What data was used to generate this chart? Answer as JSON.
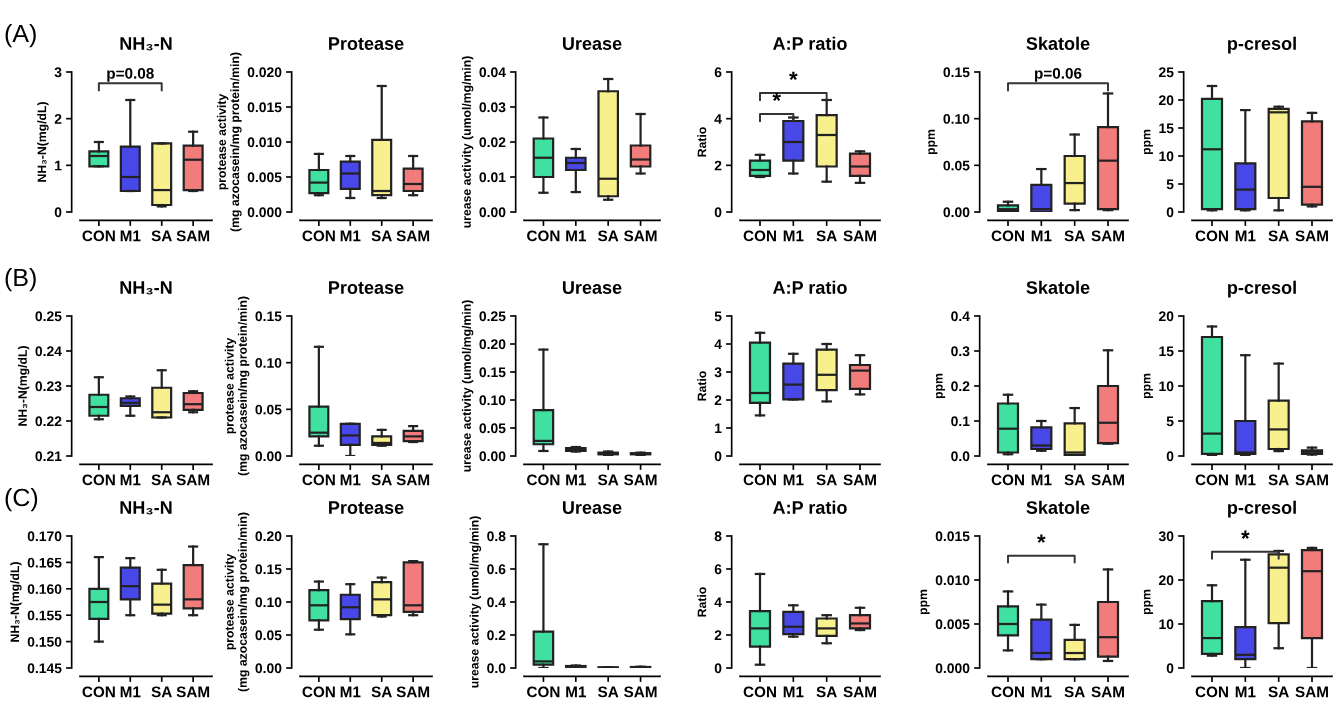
{
  "chart_data": [
    {
      "type": "box",
      "title": "NH₃-N",
      "ylabel": "NH₃-N(mg/dL)",
      "categories": [
        "CON",
        "M1",
        "SA",
        "SAM"
      ],
      "colors": [
        "#3fe0a0",
        "#4848e8",
        "#f8f08c",
        "#f27c7c"
      ],
      "ylim": [
        0,
        3
      ],
      "yticks": [
        0,
        1,
        2,
        3
      ],
      "annotations": [
        "(A)",
        "p=0.08"
      ],
      "boxes": [
        {
          "low": 0.98,
          "q1": 0.98,
          "median": 1.2,
          "q3": 1.3,
          "high": 1.5
        },
        {
          "low": 0.45,
          "q1": 0.45,
          "median": 0.75,
          "q3": 1.4,
          "high": 2.4
        },
        {
          "low": 0.12,
          "q1": 0.15,
          "median": 0.47,
          "q3": 1.47,
          "high": 1.47
        },
        {
          "low": 0.45,
          "q1": 0.47,
          "median": 1.12,
          "q3": 1.42,
          "high": 1.72
        }
      ]
    },
    {
      "type": "box",
      "title": "Protease",
      "ylabel": "protease activity\n(mg azocasein/mg protein/min)",
      "categories": [
        "CON",
        "M1",
        "SA",
        "SAM"
      ],
      "colors": [
        "#3fe0a0",
        "#4848e8",
        "#f8f08c",
        "#f27c7c"
      ],
      "ylim": [
        0,
        0.02
      ],
      "yticks": [
        {
          "value": 0,
          "label": "0.000"
        },
        {
          "value": 0.005,
          "label": "0.005"
        },
        {
          "value": 0.01,
          "label": "0.010"
        },
        {
          "value": 0.015,
          "label": "0.015"
        },
        {
          "value": 0.02,
          "label": "0.020"
        }
      ],
      "boxes": [
        {
          "low": 0.0024,
          "q1": 0.0027,
          "median": 0.0042,
          "q3": 0.006,
          "high": 0.0083
        },
        {
          "low": 0.002,
          "q1": 0.0033,
          "median": 0.0055,
          "q3": 0.0072,
          "high": 0.008
        },
        {
          "low": 0.002,
          "q1": 0.0024,
          "median": 0.003,
          "q3": 0.0103,
          "high": 0.018
        },
        {
          "low": 0.0024,
          "q1": 0.003,
          "median": 0.004,
          "q3": 0.0062,
          "high": 0.008
        }
      ]
    },
    {
      "type": "box",
      "title": "Urease",
      "ylabel": "urease activity (umol/mg/min)",
      "categories": [
        "CON",
        "M1",
        "SA",
        "SAM"
      ],
      "colors": [
        "#3fe0a0",
        "#4848e8",
        "#f8f08c",
        "#f27c7c"
      ],
      "ylim": [
        0,
        0.04
      ],
      "yticks": [
        {
          "value": 0,
          "label": "0.00"
        },
        {
          "value": 0.01,
          "label": "0.01"
        },
        {
          "value": 0.02,
          "label": "0.02"
        },
        {
          "value": 0.03,
          "label": "0.03"
        },
        {
          "value": 0.04,
          "label": "0.04"
        }
      ],
      "boxes": [
        {
          "low": 0.0055,
          "q1": 0.01,
          "median": 0.0155,
          "q3": 0.021,
          "high": 0.027
        },
        {
          "low": 0.0057,
          "q1": 0.012,
          "median": 0.014,
          "q3": 0.0155,
          "high": 0.018
        },
        {
          "low": 0.0035,
          "q1": 0.0045,
          "median": 0.0095,
          "q3": 0.0345,
          "high": 0.038
        },
        {
          "low": 0.011,
          "q1": 0.013,
          "median": 0.015,
          "q3": 0.019,
          "high": 0.028
        }
      ]
    },
    {
      "type": "box",
      "title": "A:P ratio",
      "ylabel": "Ratio",
      "categories": [
        "CON",
        "M1",
        "SA",
        "SAM"
      ],
      "colors": [
        "#3fe0a0",
        "#4848e8",
        "#f8f08c",
        "#f27c7c"
      ],
      "ylim": [
        0,
        6
      ],
      "yticks": [
        0,
        2,
        4,
        6
      ],
      "annotations": [
        "*",
        "*"
      ],
      "boxes": [
        {
          "low": 1.5,
          "q1": 1.55,
          "median": 1.8,
          "q3": 2.2,
          "high": 2.45
        },
        {
          "low": 1.65,
          "q1": 2.2,
          "median": 3.0,
          "q3": 3.9,
          "high": 4.05
        },
        {
          "low": 1.3,
          "q1": 1.95,
          "median": 3.3,
          "q3": 4.15,
          "high": 4.8
        },
        {
          "low": 1.25,
          "q1": 1.55,
          "median": 1.95,
          "q3": 2.5,
          "high": 2.6
        }
      ]
    },
    {
      "type": "box",
      "title": "Skatole",
      "ylabel": "ppm",
      "categories": [
        "CON",
        "M1",
        "SA",
        "SAM"
      ],
      "colors": [
        "#3fe0a0",
        "#4848e8",
        "#f8f08c",
        "#f27c7c"
      ],
      "ylim": [
        0,
        0.15
      ],
      "yticks": [
        {
          "value": 0,
          "label": "0.00"
        },
        {
          "value": 0.05,
          "label": "0.05"
        },
        {
          "value": 0.1,
          "label": "0.10"
        },
        {
          "value": 0.15,
          "label": "0.15"
        }
      ],
      "annotations": [
        "p=0.06"
      ],
      "boxes": [
        {
          "low": 0,
          "q1": 0.001,
          "median": 0.003,
          "q3": 0.007,
          "high": 0.011
        },
        {
          "low": 0,
          "q1": 0,
          "median": 0.003,
          "q3": 0.029,
          "high": 0.046
        },
        {
          "low": 0.002,
          "q1": 0.009,
          "median": 0.031,
          "q3": 0.06,
          "high": 0.083
        },
        {
          "low": 0.002,
          "q1": 0.003,
          "median": 0.055,
          "q3": 0.091,
          "high": 0.127
        }
      ]
    },
    {
      "type": "box",
      "title": "p-cresol",
      "ylabel": "ppm",
      "categories": [
        "CON",
        "M1",
        "SA",
        "SAM"
      ],
      "colors": [
        "#3fe0a0",
        "#4848e8",
        "#f8f08c",
        "#f27c7c"
      ],
      "ylim": [
        0,
        25
      ],
      "yticks": [
        0,
        5,
        10,
        15,
        20,
        25
      ],
      "boxes": [
        {
          "low": 0.3,
          "q1": 0.5,
          "median": 11.2,
          "q3": 20.2,
          "high": 22.5
        },
        {
          "low": 0.3,
          "q1": 0.5,
          "median": 4,
          "q3": 8.7,
          "high": 18.2
        },
        {
          "low": 0.3,
          "q1": 2.5,
          "median": 17.8,
          "q3": 18.4,
          "high": 18.8
        },
        {
          "low": 1,
          "q1": 1.3,
          "median": 4.5,
          "q3": 16.2,
          "high": 17.7
        }
      ]
    },
    {
      "type": "box",
      "title": "NH₃-N",
      "ylabel": "NH₃-N(mg/dL)",
      "categories": [
        "CON",
        "M1",
        "SA",
        "SAM"
      ],
      "colors": [
        "#3fe0a0",
        "#4848e8",
        "#f8f08c",
        "#f27c7c"
      ],
      "ylim": [
        0.21,
        0.25
      ],
      "yticks": [
        {
          "value": 0.21,
          "label": "0.21"
        },
        {
          "value": 0.22,
          "label": "0.22"
        },
        {
          "value": 0.23,
          "label": "0.23"
        },
        {
          "value": 0.24,
          "label": "0.24"
        },
        {
          "value": 0.25,
          "label": "0.25"
        }
      ],
      "annotations": [
        "(B)"
      ],
      "boxes": [
        {
          "low": 0.2205,
          "q1": 0.2215,
          "median": 0.224,
          "q3": 0.2275,
          "high": 0.2325
        },
        {
          "low": 0.2215,
          "q1": 0.2243,
          "median": 0.2252,
          "q3": 0.2265,
          "high": 0.227
        },
        {
          "low": 0.221,
          "q1": 0.221,
          "median": 0.2225,
          "q3": 0.2295,
          "high": 0.2345
        },
        {
          "low": 0.2225,
          "q1": 0.2232,
          "median": 0.2248,
          "q3": 0.228,
          "high": 0.2285
        }
      ]
    },
    {
      "type": "box",
      "title": "Protease",
      "ylabel": "protease activity\n(mg azocasein/mg protein/min)",
      "categories": [
        "CON",
        "M1",
        "SA",
        "SAM"
      ],
      "colors": [
        "#3fe0a0",
        "#4848e8",
        "#f8f08c",
        "#f27c7c"
      ],
      "ylim": [
        0,
        0.15
      ],
      "yticks": [
        {
          "value": 0,
          "label": "0.00"
        },
        {
          "value": 0.05,
          "label": "0.05"
        },
        {
          "value": 0.1,
          "label": "0.10"
        },
        {
          "value": 0.15,
          "label": "0.15"
        }
      ],
      "boxes": [
        {
          "low": 0.011,
          "q1": 0.021,
          "median": 0.025,
          "q3": 0.053,
          "high": 0.117
        },
        {
          "low": 0,
          "q1": 0.012,
          "median": 0.022,
          "q3": 0.0345,
          "high": 0.0345
        },
        {
          "low": 0.011,
          "q1": 0.012,
          "median": 0.014,
          "q3": 0.021,
          "high": 0.028
        },
        {
          "low": 0.015,
          "q1": 0.016,
          "median": 0.021,
          "q3": 0.027,
          "high": 0.032
        }
      ]
    },
    {
      "type": "box",
      "title": "Urease",
      "ylabel": "urease activity (umol/mg/min)",
      "categories": [
        "CON",
        "M1",
        "SA",
        "SAM"
      ],
      "colors": [
        "#3fe0a0",
        "#4848e8",
        "#f8f08c",
        "#f27c7c"
      ],
      "ylim": [
        0,
        0.25
      ],
      "yticks": [
        {
          "value": 0,
          "label": "0.00"
        },
        {
          "value": 0.05,
          "label": "0.05"
        },
        {
          "value": 0.1,
          "label": "0.10"
        },
        {
          "value": 0.15,
          "label": "0.15"
        },
        {
          "value": 0.2,
          "label": "0.20"
        },
        {
          "value": 0.25,
          "label": "0.25"
        }
      ],
      "boxes": [
        {
          "low": 0.009,
          "q1": 0.021,
          "median": 0.027,
          "q3": 0.082,
          "high": 0.19
        },
        {
          "low": 0.008,
          "q1": 0.009,
          "median": 0.011,
          "q3": 0.014,
          "high": 0.016
        },
        {
          "low": 0.002,
          "q1": 0.003,
          "median": 0.004,
          "q3": 0.006,
          "high": 0.008
        },
        {
          "low": 0.002,
          "q1": 0.003,
          "median": 0.004,
          "q3": 0.005,
          "high": 0.006
        }
      ]
    },
    {
      "type": "box",
      "title": "A:P ratio",
      "ylabel": "Ratio",
      "categories": [
        "CON",
        "M1",
        "SA",
        "SAM"
      ],
      "colors": [
        "#3fe0a0",
        "#4848e8",
        "#f8f08c",
        "#f27c7c"
      ],
      "ylim": [
        0,
        5
      ],
      "yticks": [
        0,
        1,
        2,
        3,
        4,
        5
      ],
      "boxes": [
        {
          "low": 1.45,
          "q1": 1.9,
          "median": 2.25,
          "q3": 4.05,
          "high": 4.4
        },
        {
          "low": 2.02,
          "q1": 2.02,
          "median": 2.55,
          "q3": 3.3,
          "high": 3.65
        },
        {
          "low": 1.95,
          "q1": 2.35,
          "median": 2.9,
          "q3": 3.8,
          "high": 4.0
        },
        {
          "low": 2.2,
          "q1": 2.4,
          "median": 3.05,
          "q3": 3.25,
          "high": 3.6
        }
      ]
    },
    {
      "type": "box",
      "title": "Skatole",
      "ylabel": "ppm",
      "categories": [
        "CON",
        "M1",
        "SA",
        "SAM"
      ],
      "colors": [
        "#3fe0a0",
        "#4848e8",
        "#f8f08c",
        "#f27c7c"
      ],
      "ylim": [
        0,
        0.4
      ],
      "yticks": [
        {
          "value": 0,
          "label": "0.0"
        },
        {
          "value": 0.1,
          "label": "0.1"
        },
        {
          "value": 0.2,
          "label": "0.2"
        },
        {
          "value": 0.3,
          "label": "0.3"
        },
        {
          "value": 0.4,
          "label": "0.4"
        }
      ],
      "boxes": [
        {
          "low": 0.005,
          "q1": 0.01,
          "median": 0.078,
          "q3": 0.15,
          "high": 0.175
        },
        {
          "low": 0.015,
          "q1": 0.02,
          "median": 0.03,
          "q3": 0.082,
          "high": 0.1
        },
        {
          "low": 0,
          "q1": 0.003,
          "median": 0.01,
          "q3": 0.093,
          "high": 0.137
        },
        {
          "low": 0.035,
          "q1": 0.037,
          "median": 0.095,
          "q3": 0.2,
          "high": 0.302
        }
      ]
    },
    {
      "type": "box",
      "title": "p-cresol",
      "ylabel": "ppm",
      "categories": [
        "CON",
        "M1",
        "SA",
        "SAM"
      ],
      "colors": [
        "#3fe0a0",
        "#4848e8",
        "#f8f08c",
        "#f27c7c"
      ],
      "ylim": [
        0,
        20
      ],
      "yticks": [
        0,
        5,
        10,
        15,
        20
      ],
      "boxes": [
        {
          "low": 0,
          "q1": 0.3,
          "median": 3.2,
          "q3": 17,
          "high": 18.5
        },
        {
          "low": 0,
          "q1": 0.3,
          "median": 0.5,
          "q3": 5,
          "high": 14.4
        },
        {
          "low": 0.7,
          "q1": 1,
          "median": 3.8,
          "q3": 7.9,
          "high": 13.2
        },
        {
          "low": 0.2,
          "q1": 0.3,
          "median": 0.6,
          "q3": 0.8,
          "high": 1.2
        }
      ]
    },
    {
      "type": "box",
      "title": "NH₃-N",
      "ylabel": "NH₃-N(mg/dL)",
      "categories": [
        "CON",
        "M1",
        "SA",
        "SAM"
      ],
      "colors": [
        "#3fe0a0",
        "#4848e8",
        "#f8f08c",
        "#f27c7c"
      ],
      "ylim": [
        0.145,
        0.17
      ],
      "yticks": [
        {
          "value": 0.145,
          "label": "0.145"
        },
        {
          "value": 0.15,
          "label": "0.150"
        },
        {
          "value": 0.155,
          "label": "0.155"
        },
        {
          "value": 0.16,
          "label": "0.160"
        },
        {
          "value": 0.165,
          "label": "0.165"
        },
        {
          "value": 0.17,
          "label": "0.170"
        }
      ],
      "annotations": [
        "(C)"
      ],
      "boxes": [
        {
          "low": 0.15,
          "q1": 0.1543,
          "median": 0.1575,
          "q3": 0.16,
          "high": 0.166
        },
        {
          "low": 0.155,
          "q1": 0.158,
          "median": 0.1605,
          "q3": 0.164,
          "high": 0.1658
        },
        {
          "low": 0.155,
          "q1": 0.1553,
          "median": 0.157,
          "q3": 0.161,
          "high": 0.1636
        },
        {
          "low": 0.155,
          "q1": 0.1563,
          "median": 0.158,
          "q3": 0.1645,
          "high": 0.168
        }
      ]
    },
    {
      "type": "box",
      "title": "Protease",
      "ylabel": "protease activity\n(mg azocasein/mg protein/min)",
      "categories": [
        "CON",
        "M1",
        "SA",
        "SAM"
      ],
      "colors": [
        "#3fe0a0",
        "#4848e8",
        "#f8f08c",
        "#f27c7c"
      ],
      "ylim": [
        0,
        0.2
      ],
      "yticks": [
        {
          "value": 0,
          "label": "0.00"
        },
        {
          "value": 0.05,
          "label": "0.05"
        },
        {
          "value": 0.1,
          "label": "0.10"
        },
        {
          "value": 0.15,
          "label": "0.15"
        },
        {
          "value": 0.2,
          "label": "0.20"
        }
      ],
      "boxes": [
        {
          "low": 0.058,
          "q1": 0.072,
          "median": 0.095,
          "q3": 0.118,
          "high": 0.131
        },
        {
          "low": 0.051,
          "q1": 0.074,
          "median": 0.092,
          "q3": 0.111,
          "high": 0.127
        },
        {
          "low": 0.078,
          "q1": 0.08,
          "median": 0.104,
          "q3": 0.13,
          "high": 0.137
        },
        {
          "low": 0.08,
          "q1": 0.085,
          "median": 0.095,
          "q3": 0.16,
          "high": 0.162
        }
      ]
    },
    {
      "type": "box",
      "title": "Urease",
      "ylabel": "urease activity (umol/mg/min)",
      "categories": [
        "CON",
        "M1",
        "SA",
        "SAM"
      ],
      "colors": [
        "#3fe0a0",
        "#4848e8",
        "#f8f08c",
        "#f27c7c"
      ],
      "ylim": [
        0,
        0.8
      ],
      "yticks": [
        {
          "value": 0,
          "label": "0.0"
        },
        {
          "value": 0.2,
          "label": "0.2"
        },
        {
          "value": 0.4,
          "label": "0.4"
        },
        {
          "value": 0.6,
          "label": "0.6"
        },
        {
          "value": 0.8,
          "label": "0.8"
        }
      ],
      "boxes": [
        {
          "low": 0,
          "q1": 0.02,
          "median": 0.04,
          "q3": 0.22,
          "high": 0.75
        },
        {
          "low": 0.005,
          "q1": 0.007,
          "median": 0.01,
          "q3": 0.012,
          "high": 0.015
        },
        {
          "low": 0,
          "q1": 0,
          "median": 0.002,
          "q3": 0.004,
          "high": 0.005
        },
        {
          "low": 0,
          "q1": 0.002,
          "median": 0.004,
          "q3": 0.006,
          "high": 0.008
        }
      ]
    },
    {
      "type": "box",
      "title": "A:P ratio",
      "ylabel": "Ratio",
      "categories": [
        "CON",
        "M1",
        "SA",
        "SAM"
      ],
      "colors": [
        "#3fe0a0",
        "#4848e8",
        "#f8f08c",
        "#f27c7c"
      ],
      "ylim": [
        0,
        8
      ],
      "yticks": [
        0,
        2,
        4,
        6,
        8
      ],
      "boxes": [
        {
          "low": 0.2,
          "q1": 1.3,
          "median": 2.4,
          "q3": 3.45,
          "high": 5.7
        },
        {
          "low": 1.9,
          "q1": 2.05,
          "median": 2.5,
          "q3": 3.4,
          "high": 3.8
        },
        {
          "low": 1.5,
          "q1": 1.95,
          "median": 2.4,
          "q3": 3.0,
          "high": 3.2
        },
        {
          "low": 2.3,
          "q1": 2.4,
          "median": 2.7,
          "q3": 3.2,
          "high": 3.65
        }
      ]
    },
    {
      "type": "box",
      "title": "Skatole",
      "ylabel": "ppm",
      "categories": [
        "CON",
        "M1",
        "SA",
        "SAM"
      ],
      "colors": [
        "#3fe0a0",
        "#4848e8",
        "#f8f08c",
        "#f27c7c"
      ],
      "ylim": [
        0,
        0.015
      ],
      "yticks": [
        {
          "value": 0,
          "label": "0.000"
        },
        {
          "value": 0.005,
          "label": "0.005"
        },
        {
          "value": 0.01,
          "label": "0.010"
        },
        {
          "value": 0.015,
          "label": "0.015"
        }
      ],
      "annotations": [
        "*"
      ],
      "boxes": [
        {
          "low": 0.002,
          "q1": 0.0037,
          "median": 0.005,
          "q3": 0.007,
          "high": 0.0087
        },
        {
          "low": 0.001,
          "q1": 0.001,
          "median": 0.0017,
          "q3": 0.0055,
          "high": 0.0072
        },
        {
          "low": 0.001,
          "q1": 0.001,
          "median": 0.0017,
          "q3": 0.0032,
          "high": 0.0049
        },
        {
          "low": 0.0008,
          "q1": 0.0013,
          "median": 0.0035,
          "q3": 0.0075,
          "high": 0.0112
        }
      ]
    },
    {
      "type": "box",
      "title": "p-cresol",
      "ylabel": "ppm",
      "categories": [
        "CON",
        "M1",
        "SA",
        "SAM"
      ],
      "colors": [
        "#3fe0a0",
        "#4848e8",
        "#f8f08c",
        "#f27c7c"
      ],
      "ylim": [
        0,
        30
      ],
      "yticks": [
        0,
        10,
        20,
        30
      ],
      "annotations": [
        "*"
      ],
      "boxes": [
        {
          "low": 2.8,
          "q1": 3.2,
          "median": 6.8,
          "q3": 15.2,
          "high": 18.8
        },
        {
          "low": 0,
          "q1": 2,
          "median": 3,
          "q3": 9.3,
          "high": 24.6
        },
        {
          "low": 4.5,
          "q1": 10.2,
          "median": 22.8,
          "q3": 25.8,
          "high": 26.6
        },
        {
          "low": 0,
          "q1": 6.8,
          "median": 22,
          "q3": 26.8,
          "high": 27.3
        }
      ]
    }
  ]
}
